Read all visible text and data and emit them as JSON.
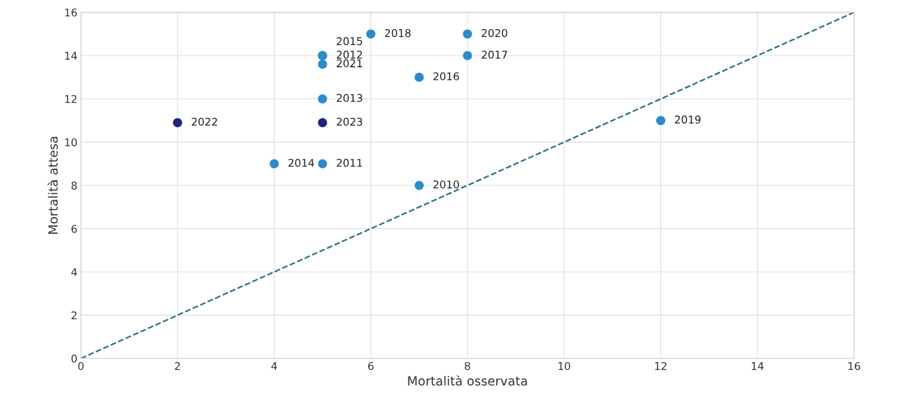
{
  "chart_data": {
    "type": "scatter",
    "xlabel": "Mortalità osservata",
    "ylabel": "Mortalità attesa",
    "xlim": [
      0,
      16
    ],
    "ylim": [
      0,
      16
    ],
    "xticks": [
      0,
      2,
      4,
      6,
      8,
      10,
      12,
      14,
      16
    ],
    "yticks": [
      0,
      2,
      4,
      6,
      8,
      10,
      12,
      14,
      16
    ],
    "grid": true,
    "series": [
      {
        "marker": "circle",
        "x": [
          7,
          5,
          5,
          5,
          4,
          5,
          7,
          8,
          6,
          12,
          8,
          5,
          2,
          5
        ],
        "values": [
          8,
          9,
          14,
          12,
          9,
          14,
          13,
          14,
          15,
          11,
          15,
          13.6,
          10.9,
          10.9
        ],
        "colors": [
          "#2e8bc8",
          "#2e8bc8",
          "#2e8bc8",
          "#2e8bc8",
          "#2e8bc8",
          "#2e8bc8",
          "#2e8bc8",
          "#2e8bc8",
          "#2e8bc8",
          "#2e8bc8",
          "#2e8bc8",
          "#2e8bc8",
          "#23237a",
          "#23237a"
        ]
      },
      {
        "type": "line",
        "x": [
          0,
          16
        ],
        "values": [
          0,
          16
        ],
        "color": "#2a6f80",
        "line_style": "dashed"
      }
    ],
    "annotations": [
      {
        "text": "2010",
        "x": 7,
        "y": 8
      },
      {
        "text": "2011",
        "x": 5,
        "y": 9
      },
      {
        "text": "2012",
        "x": 5,
        "y": 14
      },
      {
        "text": "2013",
        "x": 5,
        "y": 12
      },
      {
        "text": "2014",
        "x": 4,
        "y": 9
      },
      {
        "text": "2015",
        "x": 5,
        "y": 14
      },
      {
        "text": "2016",
        "x": 7,
        "y": 13
      },
      {
        "text": "2017",
        "x": 8,
        "y": 14
      },
      {
        "text": "2018",
        "x": 6,
        "y": 15
      },
      {
        "text": "2019",
        "x": 12,
        "y": 11
      },
      {
        "text": "2020",
        "x": 8,
        "y": 15
      },
      {
        "text": "2021",
        "x": 5,
        "y": 13.6
      },
      {
        "text": "2022",
        "x": 2,
        "y": 10.9
      },
      {
        "text": "2023",
        "x": 5,
        "y": 10.9
      }
    ]
  }
}
